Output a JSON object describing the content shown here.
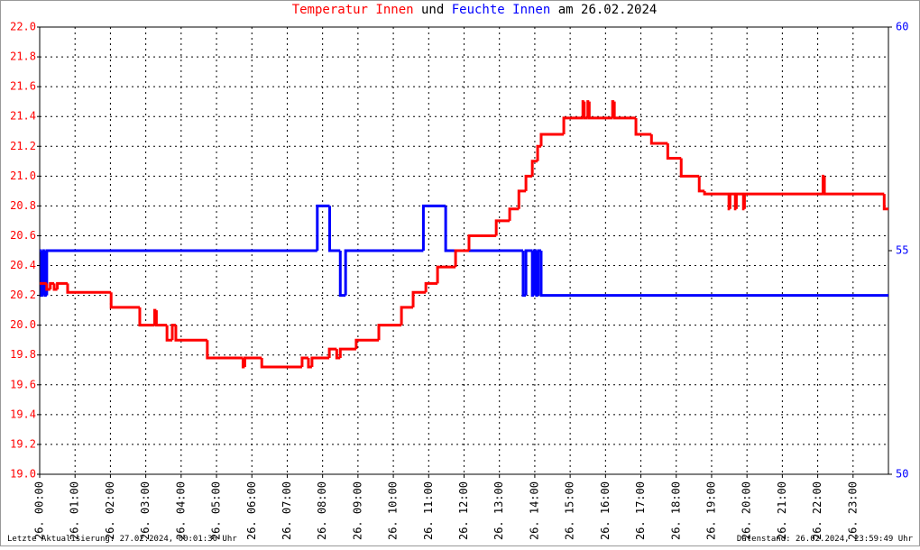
{
  "chart_data": {
    "type": "line",
    "step": "post",
    "title_parts": [
      "und",
      "am 26.02.2024"
    ],
    "footnotes": [
      "Letzte Aktualisierung: 27.02.2024, 00:01:30 Uhr",
      "Datenstand: 26.02.2024, 23:59:49 Uhr"
    ],
    "grid": true,
    "xlim": [
      0,
      24
    ],
    "xticks": [
      {
        "value": 0,
        "label": "26. 00:00"
      },
      {
        "value": 1,
        "label": "26. 01:00"
      },
      {
        "value": 2,
        "label": "26. 02:00"
      },
      {
        "value": 3,
        "label": "26. 03:00"
      },
      {
        "value": 4,
        "label": "26. 04:00"
      },
      {
        "value": 5,
        "label": "26. 05:00"
      },
      {
        "value": 6,
        "label": "26. 06:00"
      },
      {
        "value": 7,
        "label": "26. 07:00"
      },
      {
        "value": 8,
        "label": "26. 08:00"
      },
      {
        "value": 9,
        "label": "26. 09:00"
      },
      {
        "value": 10,
        "label": "26. 10:00"
      },
      {
        "value": 11,
        "label": "26. 11:00"
      },
      {
        "value": 12,
        "label": "26. 12:00"
      },
      {
        "value": 13,
        "label": "26. 13:00"
      },
      {
        "value": 14,
        "label": "26. 14:00"
      },
      {
        "value": 15,
        "label": "26. 15:00"
      },
      {
        "value": 16,
        "label": "26. 16:00"
      },
      {
        "value": 17,
        "label": "26. 17:00"
      },
      {
        "value": 18,
        "label": "26. 18:00"
      },
      {
        "value": 19,
        "label": "26. 19:00"
      },
      {
        "value": 20,
        "label": "26. 20:00"
      },
      {
        "value": 21,
        "label": "26. 21:00"
      },
      {
        "value": 22,
        "label": "26. 22:00"
      },
      {
        "value": 23,
        "label": "26. 23:00"
      }
    ],
    "ylim": [
      19,
      22
    ],
    "yticks": [
      {
        "value": 19,
        "label": "19.0"
      },
      19.2,
      19.4,
      19.6,
      19.8,
      {
        "value": 20,
        "label": "20.0"
      },
      20.2,
      20.4,
      20.6,
      20.8,
      {
        "value": 21,
        "label": "21.0"
      },
      21.2,
      21.4,
      21.6,
      21.8,
      {
        "value": 22,
        "label": "22.0"
      }
    ],
    "y2lim": [
      50,
      60
    ],
    "y2ticks": [
      50,
      55,
      60
    ],
    "series": [
      {
        "name": "Temperatur Innen",
        "color": "#ff0000",
        "axis": "y",
        "x": [
          0,
          0.2,
          0.3,
          0.41,
          0.5,
          0.79,
          2.02,
          2.83,
          3.25,
          3.3,
          3.6,
          3.75,
          3.85,
          4.74,
          5.75,
          5.8,
          6.28,
          7.42,
          7.6,
          7.7,
          8.19,
          8.4,
          8.5,
          8.95,
          9.59,
          10.23,
          10.56,
          10.92,
          11.25,
          11.76,
          12.14,
          12.91,
          13.29,
          13.55,
          13.75,
          13.93,
          14.08,
          14.18,
          14.82,
          15.36,
          15.4,
          15.5,
          15.54,
          16.2,
          16.25,
          16.86,
          17.3,
          17.76,
          18.14,
          18.65,
          18.8,
          19.49,
          19.52,
          19.67,
          19.7,
          19.9,
          19.93,
          22.15,
          22.19,
          23.88,
          24
        ],
        "values": [
          20.28,
          20.24,
          20.28,
          20.24,
          20.28,
          20.22,
          20.12,
          20.0,
          20.1,
          20.0,
          19.9,
          20.0,
          19.9,
          19.78,
          19.72,
          19.78,
          19.72,
          19.78,
          19.72,
          19.78,
          19.84,
          19.78,
          19.84,
          19.9,
          20.0,
          20.12,
          20.22,
          20.28,
          20.39,
          20.5,
          20.6,
          20.7,
          20.78,
          20.9,
          21.0,
          21.1,
          21.2,
          21.28,
          21.39,
          21.5,
          21.39,
          21.5,
          21.39,
          21.5,
          21.39,
          21.28,
          21.22,
          21.12,
          21.0,
          20.9,
          20.88,
          20.78,
          20.88,
          20.78,
          20.88,
          20.78,
          20.88,
          21.0,
          20.88,
          20.78,
          20.78
        ]
      },
      {
        "name": "Feuchte Innen",
        "color": "#0000ff",
        "axis": "y2",
        "x": [
          0,
          0.05,
          0.1,
          0.15,
          0.2,
          7.85,
          8.2,
          8.5,
          8.65,
          10.85,
          11.48,
          13.67,
          13.75,
          13.93,
          13.98,
          14.05,
          14.1,
          14.18,
          24
        ],
        "values": [
          55,
          54,
          55,
          54,
          55,
          56,
          55,
          54,
          55,
          56,
          55,
          54,
          55,
          54,
          55,
          54,
          55,
          54,
          54
        ]
      }
    ]
  }
}
